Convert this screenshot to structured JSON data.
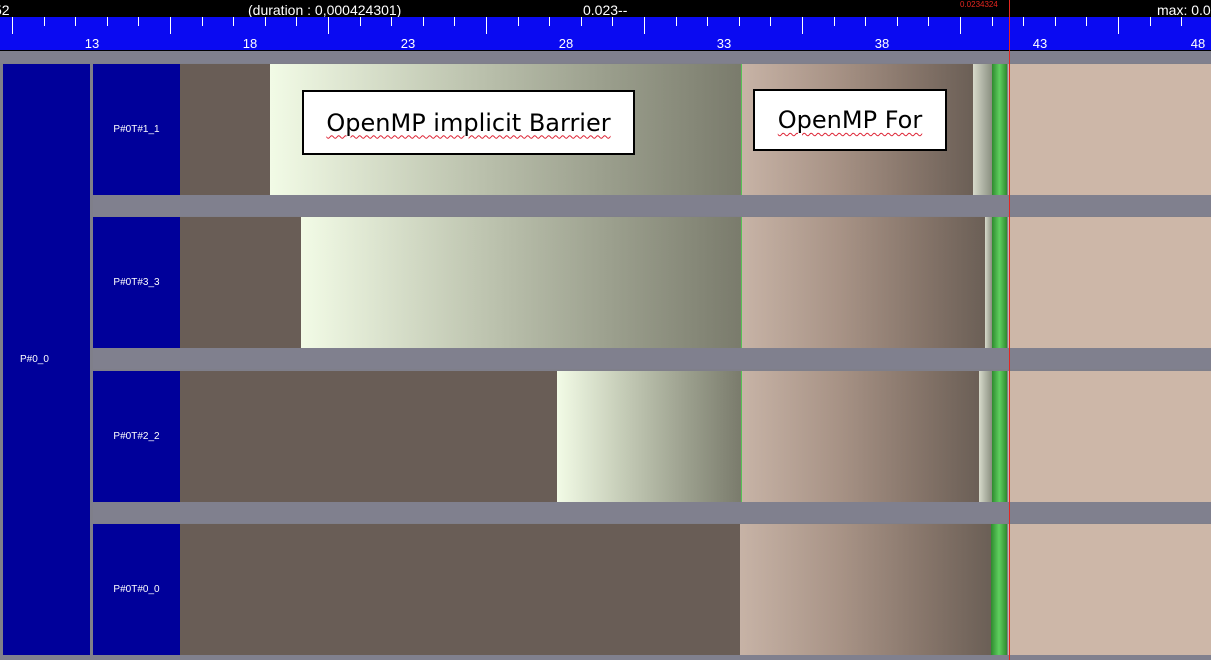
{
  "header": {
    "left_fragment": "52",
    "duration": "(duration : 0,000424301)",
    "center": "0.023--",
    "max": "max: 0.0",
    "cursor_value": "0.0234324"
  },
  "ruler": {
    "labels": [
      "13",
      "18",
      "23",
      "28",
      "33",
      "38",
      "43",
      "48"
    ]
  },
  "process": {
    "label": "P#0_0"
  },
  "threads": [
    {
      "label": "P#0T#1_1"
    },
    {
      "label": "P#0T#3_3"
    },
    {
      "label": "P#0T#2_2"
    },
    {
      "label": "P#0T#0_0"
    }
  ],
  "annotations": {
    "barrier": "OpenMP implicit Barrier",
    "for": "OpenMP For"
  },
  "colors": {
    "ruler": "#0a0af2",
    "thread_box": "#00009a",
    "idle": "#695d56",
    "for_region": "#a89386",
    "barrier_region": "#c6cdb8",
    "cursor": "#e5261f"
  }
}
